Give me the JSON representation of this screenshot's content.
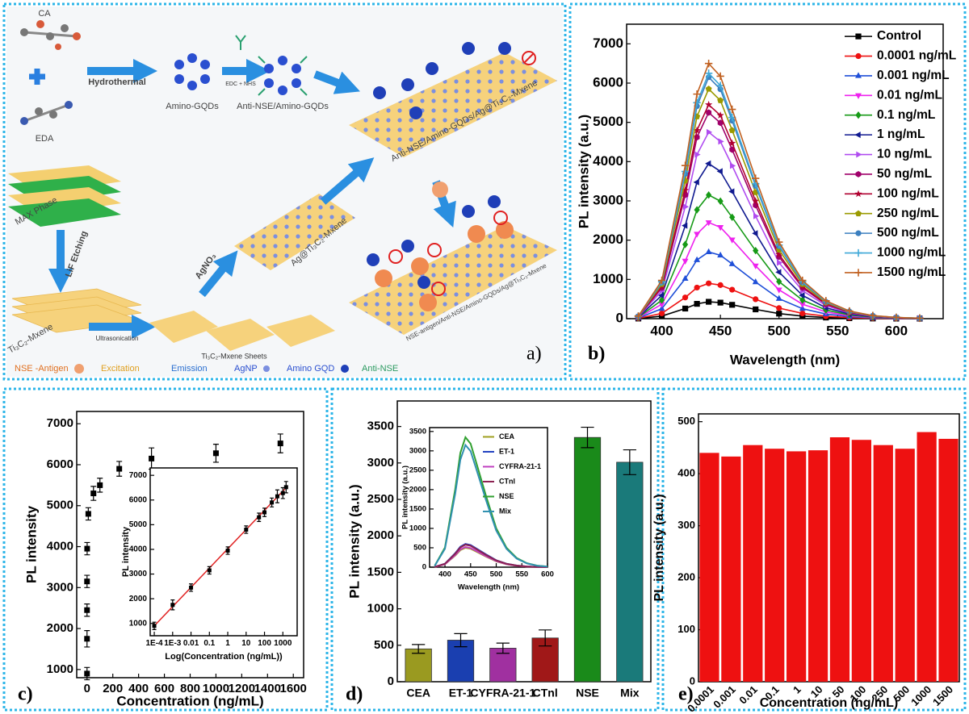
{
  "diagram": {
    "panel_label": "a)",
    "labels": [
      "CA",
      "EDA",
      "Hydrothermal",
      "Amino-GQDs",
      "EDC + NHS",
      "Anti-NSE/Amino-GQDs",
      "MAX Phase",
      "LiF Etching",
      "Ti₃C₂-Mxene",
      "Ultrasonication",
      "Ti₃C₂-Mxene Sheets",
      "AgNO₃",
      "Ag@Ti₃C₂-Mxene",
      "Anti-NSE/Amino-GQDs/Ag@Ti₃C₂-Mxene",
      "NSE-antigen/Anti-NSE/Amino-GQDs/Ag@Ti₃C₂-Mxene"
    ],
    "legend": [
      "NSE -Antigen",
      "Excitation",
      "Emission",
      "AgNP",
      "Amino GQD",
      "Anti-NSE"
    ]
  },
  "chart_data": [
    {
      "type": "line",
      "panel_label": "b)",
      "xlabel": "Wavelength (nm)",
      "ylabel": "PL intensity (a.u.)",
      "x": [
        380,
        400,
        420,
        430,
        440,
        450,
        460,
        480,
        500,
        520,
        540,
        560,
        580,
        600,
        620
      ],
      "xlim": [
        370,
        640
      ],
      "xticks": [
        400,
        450,
        500,
        550,
        600
      ],
      "ylim": [
        0,
        7500
      ],
      "yticks": [
        0,
        1000,
        2000,
        3000,
        4000,
        5000,
        6000,
        7000
      ],
      "legend": "upper right",
      "series": [
        {
          "name": "Control",
          "color": "#000000",
          "marker": "square",
          "values": [
            4,
            65,
            258,
            378,
            430,
            409,
            353,
            237,
            129,
            65,
            30,
            13,
            5,
            2,
            1
          ]
        },
        {
          "name": "0.0001 ng/mL",
          "color": "#ee1111",
          "marker": "circle",
          "values": [
            9,
            135,
            540,
            792,
            900,
            855,
            738,
            495,
            270,
            135,
            63,
            27,
            11,
            5,
            2
          ]
        },
        {
          "name": "0.001 ng/mL",
          "color": "#1f4fd8",
          "marker": "triangle-up",
          "values": [
            17,
            255,
            1020,
            1496,
            1700,
            1615,
            1394,
            935,
            510,
            255,
            119,
            51,
            20,
            9,
            3
          ]
        },
        {
          "name": "0.01 ng/mL",
          "color": "#ee22ee",
          "marker": "triangle-down",
          "values": [
            25,
            368,
            1470,
            2156,
            2450,
            2328,
            2009,
            1348,
            735,
            368,
            172,
            74,
            29,
            12,
            5
          ]
        },
        {
          "name": "0.1 ng/mL",
          "color": "#169a16",
          "marker": "diamond",
          "values": [
            32,
            473,
            1890,
            2772,
            3150,
            2993,
            2583,
            1733,
            945,
            473,
            221,
            95,
            38,
            16,
            6
          ]
        },
        {
          "name": "1 ng/mL",
          "color": "#101a90",
          "marker": "triangle-left",
          "values": [
            40,
            593,
            2370,
            3476,
            3950,
            3753,
            3239,
            2173,
            1185,
            593,
            277,
            119,
            47,
            20,
            8
          ]
        },
        {
          "name": "10 ng/mL",
          "color": "#b04cf0",
          "marker": "triangle-right",
          "values": [
            48,
            713,
            2850,
            4180,
            4750,
            4513,
            3895,
            2613,
            1425,
            713,
            333,
            143,
            57,
            24,
            10
          ]
        },
        {
          "name": "50 ng/mL",
          "color": "#a0006a",
          "marker": "hexagon",
          "values": [
            53,
            788,
            3150,
            4620,
            5250,
            4988,
            4305,
            2888,
            1575,
            788,
            368,
            158,
            63,
            26,
            11
          ]
        },
        {
          "name": "100 ng/mL",
          "color": "#b00030",
          "marker": "star",
          "values": [
            55,
            818,
            3270,
            4796,
            5450,
            5178,
            4469,
            2998,
            1635,
            818,
            382,
            164,
            65,
            27,
            11
          ]
        },
        {
          "name": "250 ng/mL",
          "color": "#9a9a00",
          "marker": "pentagon",
          "values": [
            59,
            878,
            3510,
            5148,
            5850,
            5558,
            4797,
            3218,
            1755,
            878,
            410,
            176,
            70,
            29,
            12
          ]
        },
        {
          "name": "500 ng/mL",
          "color": "#3b7fbf",
          "marker": "circle",
          "values": [
            62,
            923,
            3690,
            5412,
            6150,
            5843,
            5043,
            3383,
            1845,
            923,
            431,
            185,
            74,
            31,
            12
          ]
        },
        {
          "name": "1000 ng/mL",
          "color": "#3fa8d8",
          "marker": "plus",
          "values": [
            63,
            938,
            3750,
            5500,
            6250,
            5938,
            5125,
            3438,
            1875,
            938,
            438,
            188,
            75,
            31,
            13
          ]
        },
        {
          "name": "1500 ng/mL",
          "color": "#c06020",
          "marker": "plus",
          "values": [
            65,
            975,
            3900,
            5720,
            6500,
            6175,
            5330,
            3575,
            1950,
            975,
            455,
            195,
            78,
            33,
            13
          ]
        }
      ]
    },
    {
      "type": "scatter",
      "panel_label": "c)",
      "xlabel": "Concentration (ng/mL)",
      "ylabel": "PL intensity",
      "x": [
        0.0001,
        0.001,
        0.01,
        0.1,
        1,
        10,
        50,
        100,
        250,
        500,
        1000,
        1500
      ],
      "values": [
        900,
        1750,
        2450,
        3150,
        3950,
        4800,
        5300,
        5500,
        5900,
        6150,
        6280,
        6520
      ],
      "errors": [
        150,
        200,
        150,
        150,
        150,
        150,
        170,
        170,
        180,
        260,
        220,
        230
      ],
      "color": "#000000",
      "xlim": [
        -80,
        1680
      ],
      "xticks": [
        0,
        200,
        400,
        600,
        800,
        1000,
        1200,
        1400,
        1600
      ],
      "ylim": [
        800,
        7300
      ],
      "yticks": [
        1000,
        2000,
        3000,
        4000,
        5000,
        6000,
        7000
      ],
      "inset": {
        "xlabel": "Log(Concentration (ng/mL))",
        "ylabel": "PL intensity",
        "log_x": true,
        "xlim": [
          6e-05,
          6000
        ],
        "xticks": [
          {
            "value": 0.0001,
            "label": "1E-4"
          },
          {
            "value": 0.001,
            "label": "1E-3"
          },
          0.01,
          0.1,
          1,
          10,
          100,
          1000
        ],
        "ylim": [
          500,
          7300
        ],
        "yticks": [
          1000,
          2000,
          3000,
          4000,
          5000,
          6000,
          7000
        ],
        "fit_line": {
          "x": [
            0.0001,
            1500
          ],
          "values": [
            900,
            6500
          ],
          "color": "#e02020"
        }
      }
    },
    {
      "type": "bar",
      "panel_label": "d)",
      "ylabel": "PL intensity (a.u.)",
      "categories": [
        "CEA",
        "ET-1",
        "CYFRA-21-1",
        "CTnl",
        "NSE",
        "Mix"
      ],
      "values": [
        450,
        570,
        460,
        600,
        3350,
        3010
      ],
      "errors": [
        60,
        90,
        70,
        110,
        140,
        170
      ],
      "colors": [
        "#9a9a20",
        "#1a3fb0",
        "#a030a0",
        "#a01818",
        "#1a8a1a",
        "#1a7a7a"
      ],
      "ylim": [
        0,
        3850
      ],
      "yticks": [
        0,
        500,
        1000,
        1500,
        2000,
        2500,
        3000,
        3500
      ],
      "inset": {
        "type": "line",
        "xlabel": "Wavelength (nm)",
        "ylabel": "PL intensity (a.u.)",
        "x": [
          380,
          400,
          420,
          430,
          440,
          450,
          460,
          480,
          500,
          520,
          540,
          560,
          580,
          600
        ],
        "xlim": [
          370,
          600
        ],
        "xticks": [
          400,
          450,
          500,
          550,
          600
        ],
        "ylim": [
          0,
          3600
        ],
        "yticks": [
          0,
          500,
          1000,
          1500,
          2000,
          2500,
          3000,
          3500
        ],
        "legend": "upper right",
        "series": [
          {
            "name": "CEA",
            "color": "#a0a020",
            "values": [
              5,
              75,
              300,
              440,
              500,
              475,
              410,
              275,
              150,
              75,
              35,
              15,
              6,
              3
            ]
          },
          {
            "name": "ET-1",
            "color": "#2040c0",
            "values": [
              6,
              90,
              360,
              528,
              600,
              570,
              492,
              330,
              180,
              90,
              42,
              18,
              7,
              3
            ]
          },
          {
            "name": "CYFRA-21-1",
            "color": "#c040c0",
            "values": [
              5,
              78,
              312,
              458,
              520,
              494,
              426,
              286,
              156,
              78,
              36,
              16,
              6,
              3
            ]
          },
          {
            "name": "CTnl",
            "color": "#8a2050",
            "values": [
              6,
              87,
              348,
              510,
              580,
              551,
              476,
              319,
              174,
              87,
              41,
              17,
              7,
              3
            ]
          },
          {
            "name": "NSE",
            "color": "#30a030",
            "values": [
              34,
              503,
              2010,
              2948,
              3350,
              3183,
              2747,
              1843,
              1005,
              503,
              235,
              101,
              40,
              17
            ]
          },
          {
            "name": "Mix",
            "color": "#3090b0",
            "values": [
              32,
              473,
              1890,
              2772,
              3150,
              2993,
              2583,
              1733,
              945,
              473,
              221,
              95,
              38,
              16
            ]
          }
        ]
      }
    },
    {
      "type": "bar",
      "panel_label": "e)",
      "xlabel": "Concentration (ng/mL)",
      "ylabel": "PL intensity (a.u.)",
      "categories": [
        "0.0001",
        "0.001",
        "0.01",
        "0.1",
        "1",
        "10",
        "50",
        "100",
        "250",
        "500",
        "1000",
        "1500"
      ],
      "values": [
        440,
        433,
        455,
        448,
        443,
        445,
        470,
        465,
        455,
        448,
        480,
        467
      ],
      "color": "#ee1111",
      "ylim": [
        0,
        515
      ],
      "yticks": [
        0,
        100,
        200,
        300,
        400,
        500
      ]
    }
  ]
}
